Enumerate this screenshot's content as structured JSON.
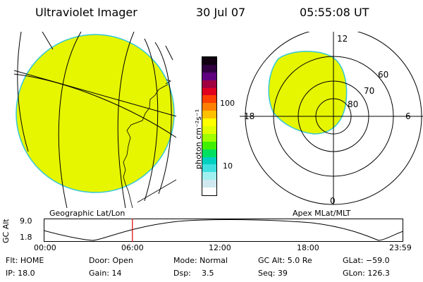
{
  "header": {
    "instrument": "Ultraviolet Imager",
    "date": "30 Jul 07",
    "time": "05:55:08 UT"
  },
  "colors": {
    "auroral_fill": "#e6f500",
    "fill_edge": "#33c8d8",
    "timeline_marker": "#e00000"
  },
  "geo_panel": {
    "label": "Geographic Lat/Lon"
  },
  "color_bar": {
    "unit_label": "photon cm⁻²s⁻¹",
    "ticks": [
      "100",
      "10"
    ],
    "colors_top_to_bottom": [
      "#100010",
      "#300040",
      "#600080",
      "#a00040",
      "#e00020",
      "#ff4000",
      "#ff8000",
      "#ffc000",
      "#ffff00",
      "#e0ff00",
      "#a0ff00",
      "#40f000",
      "#00e060",
      "#00d0c0",
      "#40e0e0",
      "#a0f0f0",
      "#d0e8f0",
      "#ffffff"
    ]
  },
  "polar_panel": {
    "label": "Apex MLat/MLT",
    "mlt_labels": {
      "top": "12",
      "left": "18",
      "right": "6",
      "bottom": "0"
    },
    "lat_labels": [
      "60",
      "70",
      "80"
    ]
  },
  "timeline": {
    "y_axis_label": "GC Alt",
    "y_ticks": [
      "9.0",
      "1.8"
    ],
    "x_ticks": [
      "00:00",
      "06:00",
      "12:00",
      "18:00",
      "23:59"
    ],
    "marker_time": "05:55"
  },
  "status": {
    "flt": "Flt: HOME",
    "ip": "IP: 18.0",
    "door": "Door: Open",
    "gain": "Gain: 14",
    "mode": "Mode:  Normal",
    "dsp_label": "Dsp:",
    "dsp_value": "3.5",
    "gc_alt": "GC Alt: 5.0 Re",
    "seq": "Seq: 39",
    "glat": "GLat: −59.0",
    "glon": "GLon: 126.3"
  }
}
